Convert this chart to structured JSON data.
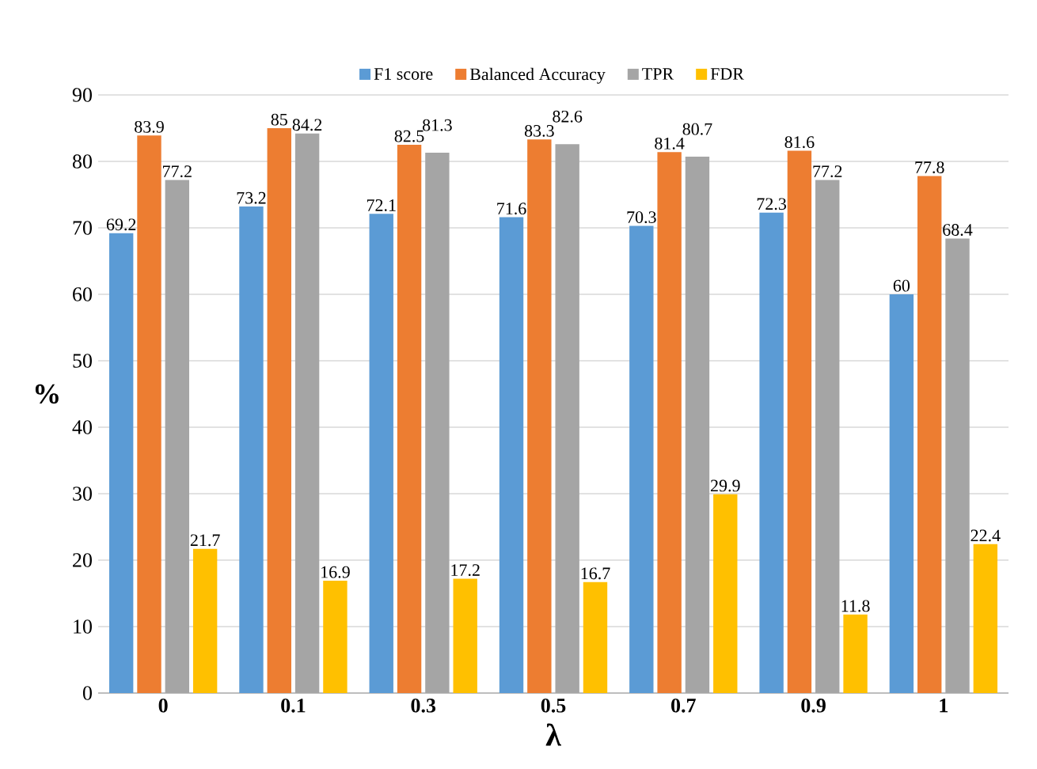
{
  "chart_data": {
    "type": "bar",
    "xlabel": "λ",
    "ylabel": "%",
    "categories": [
      "0",
      "0.1",
      "0.3",
      "0.5",
      "0.7",
      "0.9",
      "1"
    ],
    "series": [
      {
        "name": "F1 score",
        "color": "#5b9bd5",
        "values": [
          69.2,
          73.2,
          72.1,
          71.6,
          70.3,
          72.3,
          60
        ]
      },
      {
        "name": "Balanced Accuracy",
        "color": "#ed7d31",
        "values": [
          83.9,
          85,
          82.5,
          83.3,
          81.4,
          81.6,
          77.8
        ]
      },
      {
        "name": "TPR",
        "color": "#a5a5a5",
        "values": [
          77.2,
          84.2,
          81.3,
          82.6,
          80.7,
          77.2,
          68.4
        ]
      },
      {
        "name": "FDR",
        "color": "#ffc000",
        "values": [
          21.7,
          16.9,
          17.2,
          16.7,
          29.9,
          11.8,
          22.4
        ]
      }
    ],
    "ylim": [
      0,
      90
    ],
    "yticks": [
      0,
      10,
      20,
      30,
      40,
      50,
      60,
      70,
      80,
      90
    ],
    "grid": "y",
    "legend": "top",
    "data_labels": true
  }
}
